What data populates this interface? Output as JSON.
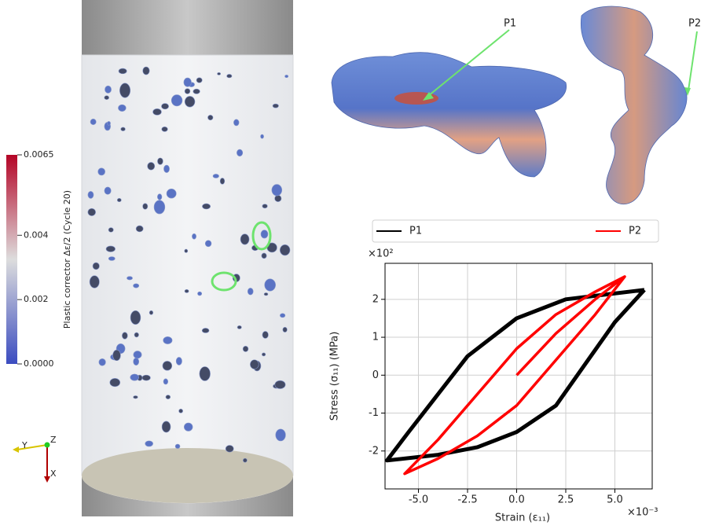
{
  "chart_data": [
    {
      "type": "colorbar",
      "label": "Plastic corrector Δε/2 (Cycle 20)",
      "ylim": [
        0,
        0.0065
      ],
      "yticks": [
        {
          "value": 0,
          "label": "0.0000"
        },
        0.002,
        0.004,
        0.0065
      ],
      "colors": [
        "#3b4cc0",
        "#dddddd",
        "#b40426"
      ]
    },
    {
      "type": "line",
      "xlabel": "Strain (ε₁₁)",
      "ylabel": "Stress (σ₁₁) (MPa)",
      "x_offset": "×10⁻³",
      "y_offset": "×10²",
      "xlim": [
        -6.7,
        6.9
      ],
      "ylim": [
        -3.0,
        2.95
      ],
      "xticks": [
        {
          "value": -5,
          "label": "-5.0"
        },
        {
          "value": -2.5,
          "label": "-2.5"
        },
        {
          "value": 0,
          "label": "0.0"
        },
        {
          "value": 2.5,
          "label": "2.5"
        },
        {
          "value": 5,
          "label": "5.0"
        }
      ],
      "yticks": [
        -2,
        -1,
        0,
        1,
        2
      ],
      "grid": true,
      "series": [
        {
          "name": "P1",
          "color": "#000000",
          "x": [
            6.5,
            2.5,
            0,
            -2.5,
            -4,
            -5.5,
            -6.6,
            -4,
            -2,
            0,
            2,
            3.5,
            5,
            6.5
          ],
          "values": [
            2.25,
            2.0,
            1.5,
            0.5,
            -0.5,
            -1.5,
            -2.25,
            -2.1,
            -1.9,
            -1.5,
            -0.8,
            0.3,
            1.4,
            2.25
          ]
        },
        {
          "name": "P2",
          "color": "#ff0000",
          "x": [
            0,
            2,
            4,
            5.5,
            4,
            2,
            0,
            -2,
            -4,
            -5.7,
            -4,
            -2,
            0,
            2,
            4,
            5.5
          ],
          "values": [
            0,
            1.1,
            2.0,
            2.6,
            2.2,
            1.6,
            0.7,
            -0.5,
            -1.7,
            -2.6,
            -2.2,
            -1.6,
            -0.8,
            0.4,
            1.6,
            2.6
          ]
        }
      ]
    }
  ],
  "image": {
    "points": [
      "P1",
      "P2"
    ],
    "axes": [
      "Y",
      "Z",
      "X"
    ]
  }
}
